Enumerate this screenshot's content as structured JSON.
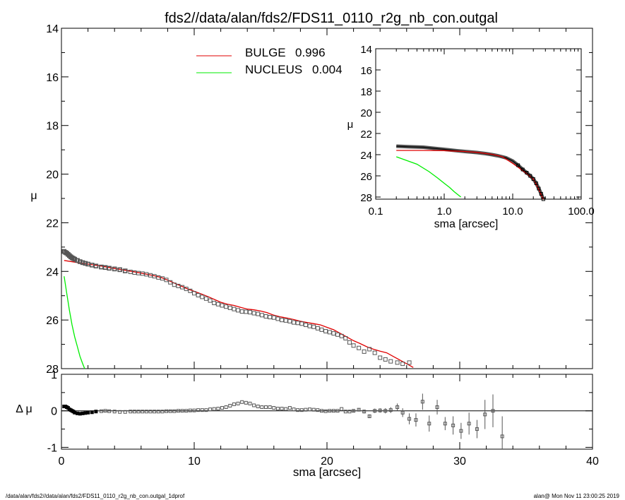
{
  "title": "fds2//data/alan/fds2/FDS11_0110_r2g_nb_con.outgal",
  "footer_left": "/data/alan/fds2//data/alan/fds2/FDS11_0110_r2g_nb_con.outgal_1dprof",
  "footer_right": "alan@  Mon Nov 11 23:00:25 2019",
  "colors": {
    "bulge": "#e00000",
    "nucleus": "#00ee00",
    "data": "#555555",
    "axes": "#000000"
  },
  "chart_data": [
    {
      "panel": "main",
      "type": "scatter",
      "xlabel": "sma [arcsec]",
      "ylabel": "μ",
      "xlim": [
        0,
        40
      ],
      "ylim": [
        28,
        14
      ],
      "y_inverted": true,
      "yticks": [
        14,
        16,
        18,
        20,
        22,
        24,
        26,
        28
      ],
      "yticklabels": [
        "14",
        "16",
        "18",
        "20",
        "22",
        "24",
        "26",
        "28"
      ],
      "legend": [
        {
          "name": "BULGE",
          "value": "0.996",
          "color": "#e00000"
        },
        {
          "name": "NUCLEUS",
          "value": "0.004",
          "color": "#00ee00"
        }
      ],
      "data_points": {
        "x": [
          0.2,
          0.3,
          0.4,
          0.5,
          0.6,
          0.7,
          0.8,
          0.9,
          1.0,
          1.2,
          1.4,
          1.6,
          1.8,
          2.0,
          2.3,
          2.6,
          3.0,
          3.3,
          3.6,
          4.0,
          4.4,
          4.8,
          5.2,
          5.5,
          5.8,
          6.1,
          6.4,
          6.7,
          7.0,
          7.3,
          7.6,
          7.9,
          8.2,
          8.5,
          8.8,
          9.1,
          9.4,
          9.7,
          10.0,
          10.3,
          10.6,
          10.9,
          11.2,
          11.5,
          11.8,
          12.1,
          12.4,
          12.7,
          13.0,
          13.3,
          13.6,
          13.9,
          14.2,
          14.5,
          14.8,
          15.1,
          15.4,
          15.7,
          16.0,
          16.3,
          16.6,
          16.9,
          17.2,
          17.5,
          17.8,
          18.1,
          18.4,
          18.7,
          19.0,
          19.3,
          19.6,
          19.9,
          20.2,
          20.5,
          20.8,
          21.1,
          21.4,
          21.7,
          22.0,
          22.4,
          22.8,
          23.2,
          23.6,
          24.0,
          24.4,
          24.8,
          25.3,
          25.7,
          26.2
        ],
        "y": [
          23.18,
          23.22,
          23.25,
          23.3,
          23.35,
          23.4,
          23.44,
          23.47,
          23.5,
          23.55,
          23.6,
          23.64,
          23.67,
          23.7,
          23.74,
          23.78,
          23.82,
          23.84,
          23.87,
          23.9,
          23.93,
          23.98,
          24.02,
          24.05,
          24.07,
          24.09,
          24.12,
          24.16,
          24.2,
          24.25,
          24.29,
          24.35,
          24.45,
          24.55,
          24.6,
          24.65,
          24.72,
          24.8,
          24.9,
          24.98,
          25.05,
          25.12,
          25.2,
          25.3,
          25.35,
          25.4,
          25.45,
          25.5,
          25.55,
          25.6,
          25.65,
          25.66,
          25.68,
          25.72,
          25.75,
          25.8,
          25.85,
          25.88,
          25.9,
          25.95,
          26.0,
          26.02,
          26.05,
          26.1,
          26.12,
          26.15,
          26.2,
          26.25,
          26.28,
          26.34,
          26.4,
          26.46,
          26.5,
          26.55,
          26.6,
          26.66,
          26.75,
          26.92,
          27.05,
          27.15,
          27.3,
          27.2,
          27.35,
          27.55,
          27.62,
          27.7,
          27.75,
          27.8,
          27.75
        ]
      },
      "series": [
        {
          "name": "BULGE",
          "color": "#e00000",
          "x": [
            0.2,
            1,
            2,
            3,
            4,
            5,
            6,
            7,
            7.5,
            8,
            8.5,
            9,
            9.5,
            10,
            10.5,
            11,
            11.5,
            12,
            12.5,
            13,
            13.5,
            14,
            14.5,
            15,
            15.5,
            16,
            16.5,
            17,
            17.5,
            18,
            18.5,
            19,
            19.5,
            20,
            20.5,
            21,
            21.5,
            22,
            22.5,
            23,
            23.5,
            24,
            24.5,
            25,
            25.5,
            26,
            26.5
          ],
          "y": [
            23.55,
            23.62,
            23.7,
            23.78,
            23.88,
            23.97,
            24.07,
            24.18,
            24.25,
            24.36,
            24.48,
            24.6,
            24.72,
            24.82,
            24.92,
            25.03,
            25.15,
            25.27,
            25.35,
            25.4,
            25.48,
            25.55,
            25.58,
            25.63,
            25.7,
            25.8,
            25.87,
            25.92,
            25.98,
            26.05,
            26.1,
            26.15,
            26.2,
            26.3,
            26.4,
            26.55,
            26.7,
            26.85,
            26.97,
            27.1,
            27.2,
            27.28,
            27.35,
            27.5,
            27.65,
            27.8,
            27.95
          ]
        },
        {
          "name": "NUCLEUS",
          "color": "#00ee00",
          "x": [
            0.2,
            0.4,
            0.6,
            0.8,
            1.0,
            1.2,
            1.4,
            1.6,
            1.75
          ],
          "y": [
            24.2,
            24.9,
            25.6,
            26.2,
            26.7,
            27.1,
            27.5,
            27.8,
            28.0
          ]
        }
      ]
    },
    {
      "panel": "residual",
      "type": "scatter",
      "xlabel": "sma [arcsec]",
      "ylabel": "Δ μ",
      "xlim": [
        0,
        40
      ],
      "ylim": [
        -1.05,
        1.0
      ],
      "xticks": [
        0,
        10,
        20,
        30,
        40
      ],
      "xticklabels": [
        "0",
        "10",
        "20",
        "30",
        "40"
      ],
      "yticks": [
        -1,
        0,
        1
      ],
      "yticklabels": [
        "-1",
        "0",
        "1"
      ],
      "residuals": {
        "x": [
          0.2,
          0.3,
          0.4,
          0.5,
          0.6,
          0.7,
          0.8,
          0.9,
          1.0,
          1.2,
          1.4,
          1.6,
          1.8,
          2.0,
          2.3,
          2.6,
          3.0,
          3.3,
          3.6,
          4.0,
          4.4,
          4.8,
          5.2,
          5.5,
          5.8,
          6.1,
          6.4,
          6.7,
          7.0,
          7.3,
          7.6,
          7.9,
          8.2,
          8.5,
          8.8,
          9.1,
          9.4,
          9.7,
          10.0,
          10.3,
          10.6,
          10.9,
          11.2,
          11.5,
          11.8,
          12.1,
          12.4,
          12.7,
          13.0,
          13.3,
          13.6,
          13.9,
          14.2,
          14.5,
          14.8,
          15.1,
          15.4,
          15.7,
          16.0,
          16.3,
          16.6,
          16.9,
          17.2,
          17.5,
          17.8,
          18.1,
          18.4,
          18.7,
          19.0,
          19.3,
          19.6,
          19.9,
          20.2,
          20.5,
          20.8,
          21.1,
          21.4,
          21.7,
          22.0,
          22.4,
          22.8,
          23.2,
          23.6,
          24.0,
          24.4,
          24.8,
          25.3,
          25.7,
          26.2,
          26.7,
          27.2,
          27.7,
          28.3,
          28.9,
          29.5,
          30.1,
          30.7,
          31.3,
          31.9,
          32.5,
          33.2
        ],
        "y": [
          0.12,
          0.12,
          0.1,
          0.08,
          0.04,
          0.02,
          0.0,
          -0.02,
          -0.05,
          -0.07,
          -0.08,
          -0.07,
          -0.06,
          -0.05,
          -0.04,
          -0.02,
          -0.01,
          0.0,
          -0.01,
          -0.02,
          -0.03,
          -0.03,
          -0.02,
          -0.02,
          -0.02,
          -0.02,
          -0.02,
          -0.02,
          -0.02,
          -0.02,
          -0.02,
          -0.01,
          -0.01,
          -0.01,
          0.0,
          0.0,
          0.0,
          0.01,
          0.01,
          0.02,
          0.02,
          0.02,
          0.04,
          0.05,
          0.06,
          0.08,
          0.1,
          0.14,
          0.18,
          0.2,
          0.24,
          0.22,
          0.2,
          0.15,
          0.12,
          0.1,
          0.1,
          0.1,
          0.08,
          0.06,
          0.06,
          0.05,
          0.08,
          0.04,
          0.02,
          0.02,
          0.03,
          0.04,
          0.03,
          0.02,
          0.0,
          -0.01,
          0.0,
          0.0,
          0.0,
          0.05,
          -0.02,
          -0.02,
          0.0,
          0.03,
          -0.02,
          -0.15,
          0.0,
          0.01,
          0.0,
          0.02,
          0.1,
          -0.05,
          -0.22,
          -0.25,
          0.25,
          -0.35,
          0.1,
          -0.35,
          -0.4,
          -0.55,
          -0.35,
          -0.5,
          -0.1,
          0.0,
          -0.7
        ],
        "err": [
          0.01,
          0.01,
          0.01,
          0.01,
          0.01,
          0.01,
          0.01,
          0.01,
          0.01,
          0.01,
          0.01,
          0.01,
          0.01,
          0.01,
          0.01,
          0.01,
          0.01,
          0.01,
          0.01,
          0.01,
          0.01,
          0.01,
          0.01,
          0.01,
          0.01,
          0.01,
          0.01,
          0.01,
          0.01,
          0.01,
          0.01,
          0.01,
          0.01,
          0.01,
          0.01,
          0.01,
          0.01,
          0.01,
          0.01,
          0.01,
          0.01,
          0.01,
          0.01,
          0.01,
          0.01,
          0.01,
          0.01,
          0.01,
          0.01,
          0.01,
          0.01,
          0.01,
          0.01,
          0.01,
          0.01,
          0.01,
          0.01,
          0.01,
          0.01,
          0.01,
          0.01,
          0.01,
          0.01,
          0.01,
          0.01,
          0.02,
          0.02,
          0.02,
          0.02,
          0.02,
          0.02,
          0.02,
          0.02,
          0.02,
          0.02,
          0.03,
          0.03,
          0.03,
          0.04,
          0.04,
          0.05,
          0.05,
          0.06,
          0.06,
          0.07,
          0.08,
          0.1,
          0.12,
          0.15,
          0.18,
          0.22,
          0.22,
          0.2,
          0.18,
          0.25,
          0.22,
          0.3,
          0.25,
          0.4,
          0.45,
          0.55
        ]
      }
    },
    {
      "panel": "inset",
      "type": "line",
      "xlabel": "sma [arcsec]",
      "ylabel": "μ",
      "xscale": "log",
      "xlim": [
        0.1,
        100
      ],
      "ylim": [
        28.2,
        14
      ],
      "xticks": [
        0.1,
        1,
        10,
        100
      ],
      "xticklabels": [
        "0.1",
        "1.0",
        "10.0",
        "100.0"
      ],
      "yticks": [
        14,
        16,
        18,
        20,
        22,
        24,
        26,
        28
      ],
      "yticklabels": [
        "14",
        "16",
        "18",
        "20",
        "22",
        "24",
        "26",
        "28"
      ],
      "profile": {
        "x": [
          0.2,
          0.3,
          0.5,
          0.7,
          1.0,
          1.5,
          2,
          3,
          4,
          5,
          6,
          7,
          8,
          10,
          12,
          14,
          16,
          18,
          20,
          22,
          24,
          26,
          28
        ],
        "y": [
          23.2,
          23.25,
          23.3,
          23.4,
          23.5,
          23.62,
          23.7,
          23.8,
          23.9,
          24.0,
          24.1,
          24.2,
          24.3,
          24.6,
          25.0,
          25.4,
          25.7,
          26.0,
          26.3,
          26.7,
          27.2,
          27.7,
          28.2
        ]
      },
      "bulge_x": [
        0.2,
        0.5,
        1,
        2,
        3,
        5,
        7,
        10,
        13,
        16,
        20,
        24,
        26,
        28
      ],
      "bulge_y": [
        23.6,
        23.6,
        23.62,
        23.7,
        23.78,
        23.97,
        24.18,
        24.82,
        25.35,
        25.8,
        26.3,
        27.28,
        27.8,
        28.2
      ],
      "nucleus_x": [
        0.2,
        0.4,
        0.6,
        0.8,
        1.0,
        1.2,
        1.4,
        1.6,
        1.75
      ],
      "nucleus_y": [
        24.2,
        24.9,
        25.6,
        26.2,
        26.7,
        27.1,
        27.5,
        27.8,
        28.0
      ]
    }
  ]
}
